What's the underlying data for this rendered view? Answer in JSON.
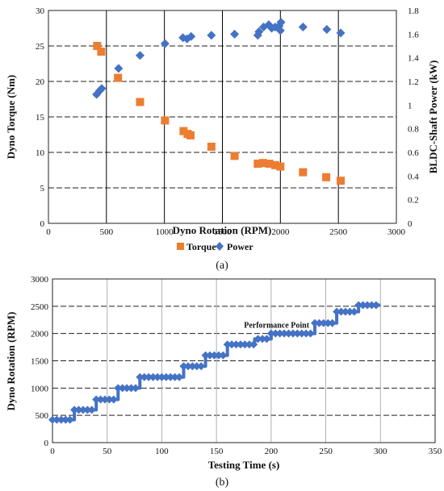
{
  "colors": {
    "torque": "#ED7D31",
    "power": "#4472C4",
    "axis": "#222222",
    "grid_dash": "#222222",
    "grid_solid": "#000000",
    "grid_light": "#b0b0b0"
  },
  "chart_data": [
    {
      "type": "scatter",
      "caption": "(a)",
      "xlabel": "Dyno  Rotation (RPM)",
      "ylabel": "Dyno Torque (Nm)",
      "y2label": "BLDC-Shaft  Power (kW)",
      "xlim": [
        0,
        3000
      ],
      "ylim": [
        0,
        30
      ],
      "y2lim": [
        0,
        1.8
      ],
      "xticks": [
        "0",
        "500",
        "1000",
        "1500",
        "2000",
        "2500",
        "3000"
      ],
      "yticks": [
        "0",
        "5",
        "10",
        "15",
        "20",
        "25",
        "30"
      ],
      "y2ticks": [
        "0",
        "0.2",
        "0.4",
        "0.6",
        "0.8",
        "1",
        "1.2",
        "1.4",
        "1.6",
        "1.8"
      ],
      "grid": "horizontal dashed, vertical solid",
      "legend_position": "bottom-center",
      "series": [
        {
          "name": "Torque",
          "marker": "square",
          "axis": "left",
          "points": [
            [
              420,
              25.0
            ],
            [
              455,
              24.2
            ],
            [
              600,
              20.5
            ],
            [
              790,
              17.1
            ],
            [
              1005,
              14.5
            ],
            [
              1165,
              13.0
            ],
            [
              1200,
              12.6
            ],
            [
              1225,
              12.4
            ],
            [
              1405,
              10.8
            ],
            [
              1605,
              9.5
            ],
            [
              1805,
              8.4
            ],
            [
              1850,
              8.5
            ],
            [
              1905,
              8.4
            ],
            [
              1955,
              8.2
            ],
            [
              2000,
              8.0
            ],
            [
              2195,
              7.2
            ],
            [
              2395,
              6.5
            ],
            [
              2520,
              6.0
            ]
          ]
        },
        {
          "name": "Power",
          "marker": "diamond",
          "axis": "right",
          "points": [
            [
              415,
              1.09
            ],
            [
              440,
              1.12
            ],
            [
              460,
              1.14
            ],
            [
              605,
              1.31
            ],
            [
              790,
              1.42
            ],
            [
              1005,
              1.52
            ],
            [
              1160,
              1.57
            ],
            [
              1195,
              1.56
            ],
            [
              1230,
              1.58
            ],
            [
              1405,
              1.59
            ],
            [
              1605,
              1.6
            ],
            [
              1805,
              1.59
            ],
            [
              1815,
              1.62
            ],
            [
              1855,
              1.66
            ],
            [
              1900,
              1.68
            ],
            [
              1925,
              1.65
            ],
            [
              1955,
              1.66
            ],
            [
              1990,
              1.67
            ],
            [
              2000,
              1.63
            ],
            [
              2005,
              1.7
            ],
            [
              2195,
              1.66
            ],
            [
              2400,
              1.64
            ],
            [
              2520,
              1.61
            ]
          ]
        }
      ]
    },
    {
      "type": "line",
      "caption": "(b)",
      "xlabel": "Testing Time (s)",
      "ylabel": "Dyno Rotation (RPM)",
      "xlim": [
        0,
        350
      ],
      "ylim": [
        0,
        3000
      ],
      "xticks": [
        "0",
        "50",
        "100",
        "150",
        "200",
        "250",
        "300",
        "350"
      ],
      "yticks": [
        "0",
        "500",
        "1000",
        "1500",
        "2000",
        "2500",
        "3000"
      ],
      "grid": "horizontal dashed, vertical light",
      "marker": "diamond",
      "annotation": {
        "text": "Performance Point",
        "x": 205,
        "y": 2050
      },
      "steps": [
        {
          "t0": 0,
          "t1": 20,
          "rpm": 420
        },
        {
          "t0": 20,
          "t1": 40,
          "rpm": 600
        },
        {
          "t0": 40,
          "t1": 60,
          "rpm": 790
        },
        {
          "t0": 60,
          "t1": 80,
          "rpm": 1000
        },
        {
          "t0": 80,
          "t1": 120,
          "rpm": 1200
        },
        {
          "t0": 120,
          "t1": 140,
          "rpm": 1400
        },
        {
          "t0": 140,
          "t1": 160,
          "rpm": 1600
        },
        {
          "t0": 160,
          "t1": 185,
          "rpm": 1800
        },
        {
          "t0": 185,
          "t1": 200,
          "rpm": 1900
        },
        {
          "t0": 200,
          "t1": 240,
          "rpm": 2000
        },
        {
          "t0": 240,
          "t1": 260,
          "rpm": 2190
        },
        {
          "t0": 260,
          "t1": 280,
          "rpm": 2400
        },
        {
          "t0": 280,
          "t1": 300,
          "rpm": 2520
        }
      ]
    }
  ]
}
